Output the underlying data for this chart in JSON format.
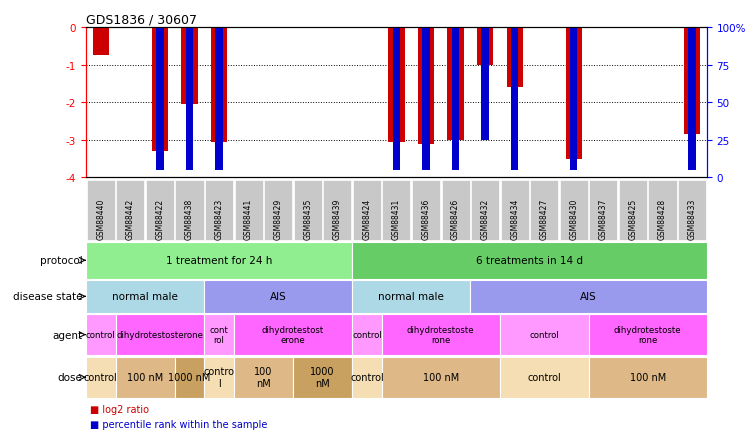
{
  "title": "GDS1836 / 30607",
  "samples": [
    "GSM88440",
    "GSM88442",
    "GSM88422",
    "GSM88438",
    "GSM88423",
    "GSM88441",
    "GSM88429",
    "GSM88435",
    "GSM88439",
    "GSM88424",
    "GSM88431",
    "GSM88436",
    "GSM88426",
    "GSM88432",
    "GSM88434",
    "GSM88427",
    "GSM88430",
    "GSM88437",
    "GSM88425",
    "GSM88428",
    "GSM88433"
  ],
  "log2_ratio": [
    -0.75,
    0,
    -3.3,
    -2.05,
    -3.05,
    0,
    0,
    0,
    0,
    0,
    -3.05,
    -3.1,
    -3.0,
    -1.0,
    -1.6,
    0,
    -3.5,
    0,
    0,
    0,
    -2.85
  ],
  "percentile": [
    0,
    0,
    5,
    5,
    5,
    0,
    0,
    0,
    0,
    0,
    5,
    5,
    5,
    25,
    5,
    0,
    5,
    0,
    0,
    0,
    5
  ],
  "ylim_left": [
    -4,
    0
  ],
  "ylim_right": [
    0,
    100
  ],
  "left_ticks": [
    0,
    -1,
    -2,
    -3,
    -4
  ],
  "right_ticks": [
    0,
    25,
    50,
    75,
    100
  ],
  "protocol_spans": [
    {
      "label": "1 treatment for 24 h",
      "start": 0,
      "end": 8,
      "color": "#90EE90"
    },
    {
      "label": "6 treatments in 14 d",
      "start": 9,
      "end": 20,
      "color": "#66CC66"
    }
  ],
  "disease_spans": [
    {
      "label": "normal male",
      "start": 0,
      "end": 3,
      "color": "#ADD8E6"
    },
    {
      "label": "AIS",
      "start": 4,
      "end": 8,
      "color": "#9999EE"
    },
    {
      "label": "normal male",
      "start": 9,
      "end": 12,
      "color": "#ADD8E6"
    },
    {
      "label": "AIS",
      "start": 13,
      "end": 20,
      "color": "#9999EE"
    }
  ],
  "agent_spans": [
    {
      "label": "control",
      "start": 0,
      "end": 0,
      "color": "#FF99FF"
    },
    {
      "label": "dihydrotestosterone",
      "start": 1,
      "end": 3,
      "color": "#FF66FF"
    },
    {
      "label": "cont\nrol",
      "start": 4,
      "end": 4,
      "color": "#FF99FF"
    },
    {
      "label": "dihydrotestost\nerone",
      "start": 5,
      "end": 8,
      "color": "#FF66FF"
    },
    {
      "label": "control",
      "start": 9,
      "end": 9,
      "color": "#FF99FF"
    },
    {
      "label": "dihydrotestoste\nrone",
      "start": 10,
      "end": 13,
      "color": "#FF66FF"
    },
    {
      "label": "control",
      "start": 14,
      "end": 16,
      "color": "#FF99FF"
    },
    {
      "label": "dihydrotestoste\nrone",
      "start": 17,
      "end": 20,
      "color": "#FF66FF"
    }
  ],
  "dose_spans": [
    {
      "label": "control",
      "start": 0,
      "end": 0,
      "color": "#F5DEB3"
    },
    {
      "label": "100 nM",
      "start": 1,
      "end": 2,
      "color": "#DEB887"
    },
    {
      "label": "1000 nM",
      "start": 3,
      "end": 3,
      "color": "#C8A060"
    },
    {
      "label": "contro\nl",
      "start": 4,
      "end": 4,
      "color": "#F5DEB3"
    },
    {
      "label": "100\nnM",
      "start": 5,
      "end": 6,
      "color": "#DEB887"
    },
    {
      "label": "1000\nnM",
      "start": 7,
      "end": 8,
      "color": "#C8A060"
    },
    {
      "label": "control",
      "start": 9,
      "end": 9,
      "color": "#F5DEB3"
    },
    {
      "label": "100 nM",
      "start": 10,
      "end": 13,
      "color": "#DEB887"
    },
    {
      "label": "control",
      "start": 14,
      "end": 16,
      "color": "#F5DEB3"
    },
    {
      "label": "100 nM",
      "start": 17,
      "end": 20,
      "color": "#DEB887"
    }
  ],
  "bar_color": "#CC0000",
  "percentile_color": "#0000CC",
  "background_color": "#FFFFFF",
  "xtick_bg": "#C8C8C8"
}
